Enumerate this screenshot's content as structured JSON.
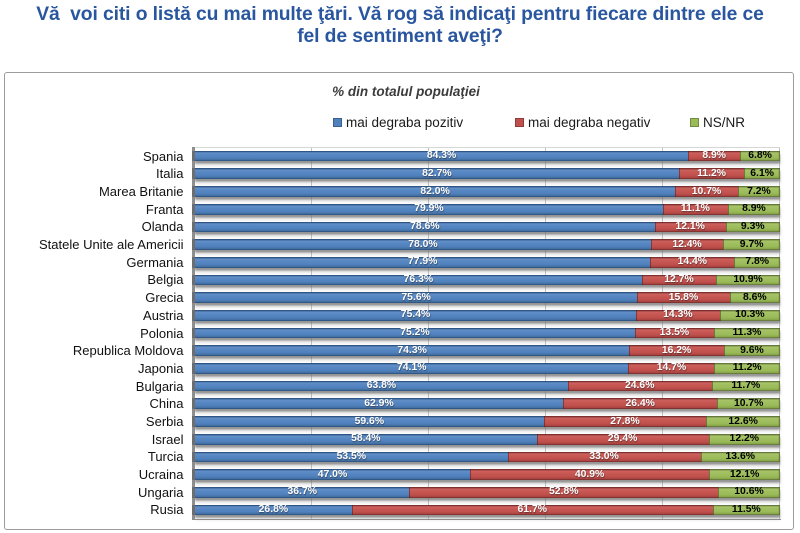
{
  "title": {
    "line1": "Vă  voi citi o listă cu mai multe ţări. Vă rog să indicaţi pentru fiecare dintre ele ce",
    "line2": "fel de sentiment aveţi?"
  },
  "chart": {
    "subtitle": "% din totalul populaţiei",
    "legend": [
      {
        "label": "mai degraba pozitiv",
        "color": "#4F81BD"
      },
      {
        "label": "mai degraba negativ",
        "color": "#C0504D"
      },
      {
        "label": "NS/NR",
        "color": "#9BBB59"
      }
    ]
  },
  "chart_data": {
    "type": "bar",
    "orientation": "horizontal",
    "stacked": true,
    "normalized_to_100": true,
    "title": "% din totalul populaţiei",
    "xlim": [
      0,
      100
    ],
    "gridlines_percent": [
      20,
      40,
      60,
      80,
      100
    ],
    "grid": true,
    "legend_position": "top",
    "value_suffix": "%",
    "categories": [
      "Spania",
      "Italia",
      "Marea Britanie",
      "Franta",
      "Olanda",
      "Statele Unite ale Americii",
      "Germania",
      "Belgia",
      "Grecia",
      "Austria",
      "Polonia",
      "Republica Moldova",
      "Japonia",
      "Bulgaria",
      "China",
      "Serbia",
      "Israel",
      "Turcia",
      "Ucraina",
      "Ungaria",
      "Rusia"
    ],
    "series": [
      {
        "name": "mai degraba pozitiv",
        "color": "#4F81BD",
        "label_color": "#ffffff",
        "values": [
          84.3,
          82.7,
          82.0,
          79.9,
          78.6,
          78.0,
          77.9,
          76.3,
          75.6,
          75.4,
          75.2,
          74.3,
          74.1,
          63.8,
          62.9,
          59.6,
          58.4,
          53.5,
          47.0,
          36.7,
          26.8
        ]
      },
      {
        "name": "mai degraba negativ",
        "color": "#C0504D",
        "label_color": "#ffffff",
        "values": [
          8.9,
          11.2,
          10.7,
          11.1,
          12.1,
          12.4,
          14.4,
          12.7,
          15.8,
          14.3,
          13.5,
          16.2,
          14.7,
          24.6,
          26.4,
          27.8,
          29.4,
          33.0,
          40.9,
          52.8,
          61.7
        ]
      },
      {
        "name": "NS/NR",
        "color": "#9BBB59",
        "label_color": "#000000",
        "values": [
          6.8,
          6.1,
          7.2,
          8.9,
          9.3,
          9.7,
          7.8,
          10.9,
          8.6,
          10.3,
          11.3,
          9.6,
          11.2,
          11.7,
          10.7,
          12.6,
          12.2,
          13.6,
          12.1,
          10.6,
          11.5
        ]
      }
    ]
  }
}
